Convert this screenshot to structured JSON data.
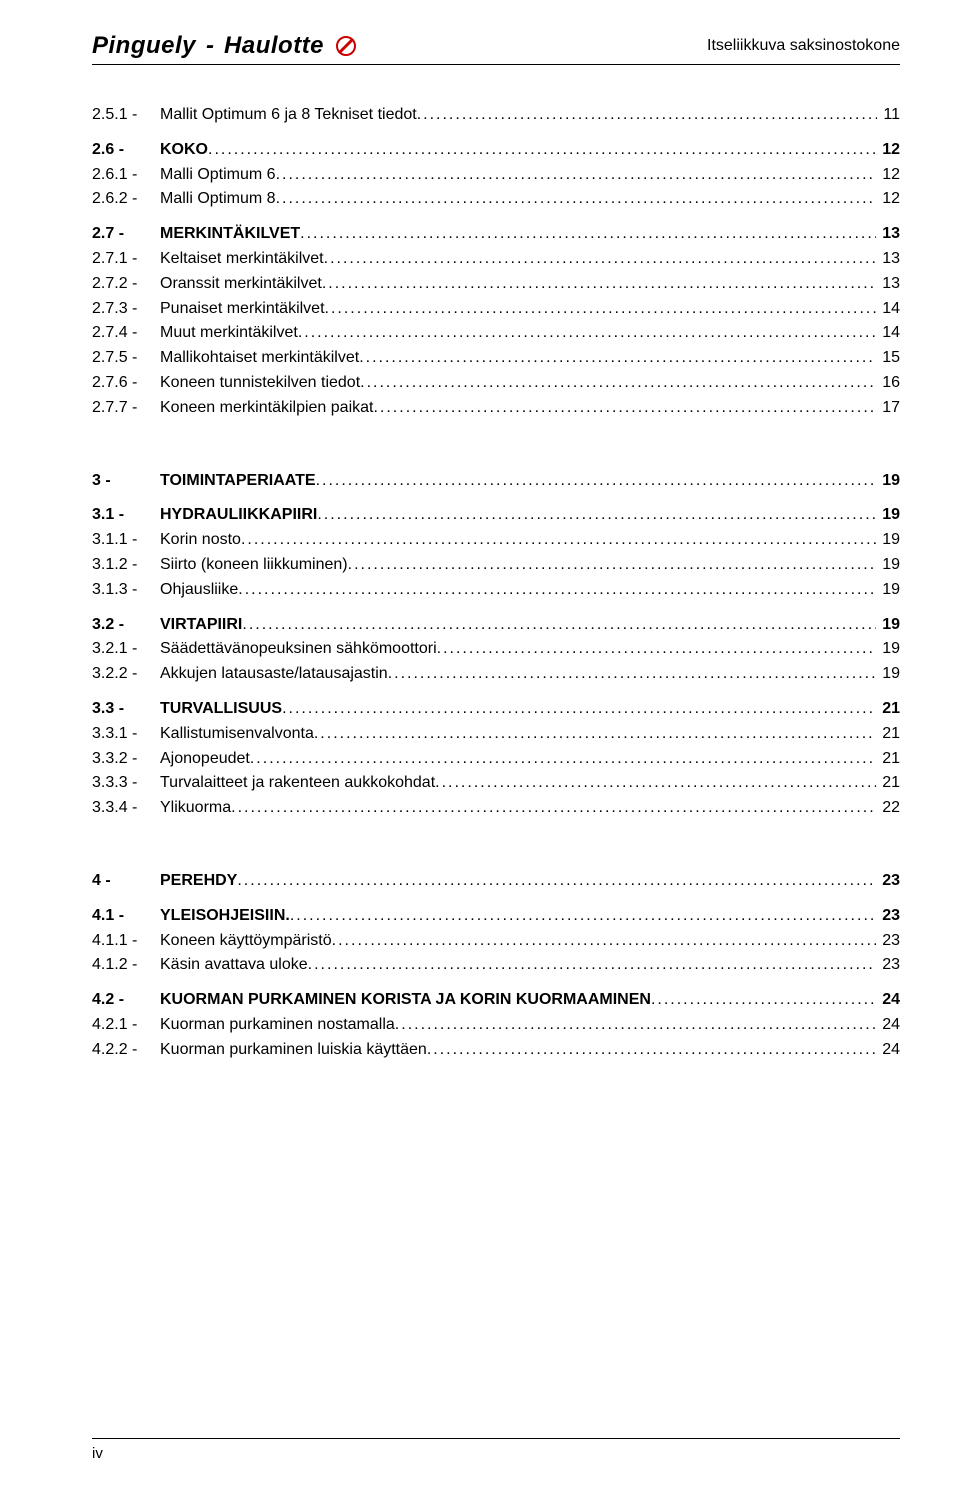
{
  "header": {
    "brand_left": "Pinguely",
    "brand_sep": "-",
    "brand_right": "Haulotte",
    "doc_title": "Itseliikkuva saksinostokone"
  },
  "footer": {
    "page_label": "iv"
  },
  "toc": [
    {
      "lvl": 2,
      "num": "2.5.1 -",
      "label": "Mallit Optimum 6 ja 8 Tekniset tiedot",
      "page": "11"
    },
    {
      "gap": "sec"
    },
    {
      "lvl": 1,
      "num": "2.6 -",
      "label": "KOKO",
      "page": "12"
    },
    {
      "lvl": 2,
      "num": "2.6.1 -",
      "label": "Malli Optimum 6",
      "page": "12"
    },
    {
      "lvl": 2,
      "num": "2.6.2 -",
      "label": "Malli Optimum 8",
      "page": "12"
    },
    {
      "gap": "sec"
    },
    {
      "lvl": 1,
      "num": "2.7 -",
      "label": "MERKINTÄKILVET",
      "page": "13"
    },
    {
      "lvl": 2,
      "num": "2.7.1 -",
      "label": "Keltaiset merkintäkilvet",
      "page": "13"
    },
    {
      "lvl": 2,
      "num": "2.7.2 -",
      "label": "Oranssit merkintäkilvet",
      "page": "13"
    },
    {
      "lvl": 2,
      "num": "2.7.3 -",
      "label": "Punaiset merkintäkilvet",
      "page": "14"
    },
    {
      "lvl": 2,
      "num": "2.7.4 -",
      "label": "Muut merkintäkilvet",
      "page": "14"
    },
    {
      "lvl": 2,
      "num": "2.7.5 -",
      "label": "Mallikohtaiset merkintäkilvet",
      "page": "15"
    },
    {
      "lvl": 2,
      "num": "2.7.6 -",
      "label": " Koneen tunnistekilven tiedot",
      "page": "16"
    },
    {
      "lvl": 2,
      "num": "2.7.7 -",
      "label": "Koneen merkintäkilpien paikat",
      "page": "17"
    },
    {
      "gap": "group"
    },
    {
      "lvl": 1,
      "num": "3 -",
      "label": "TOIMINTAPERIAATE",
      "page": "19"
    },
    {
      "gap": "sec"
    },
    {
      "lvl": 1,
      "num": "3.1 -",
      "label": "HYDRAULIIKKAPIIRI",
      "page": "19"
    },
    {
      "lvl": 2,
      "num": "3.1.1 -",
      "label": "Korin nosto",
      "page": "19"
    },
    {
      "lvl": 2,
      "num": "3.1.2 -",
      "label": "Siirto (koneen liikkuminen)",
      "page": "19"
    },
    {
      "lvl": 2,
      "num": "3.1.3 -",
      "label": "Ohjausliike",
      "page": "19"
    },
    {
      "gap": "sec"
    },
    {
      "lvl": 1,
      "num": "3.2 -",
      "label": "VIRTAPIIRI",
      "page": "19"
    },
    {
      "lvl": 2,
      "num": "3.2.1 -",
      "label": "Säädettävänopeuksinen sähkömoottori",
      "page": "19"
    },
    {
      "lvl": 2,
      "num": "3.2.2 -",
      "label": "Akkujen latausaste/latausajastin",
      "page": "19"
    },
    {
      "gap": "sec"
    },
    {
      "lvl": 1,
      "num": "3.3 -",
      "label": "TURVALLISUUS",
      "page": "21"
    },
    {
      "lvl": 2,
      "num": "3.3.1 -",
      "label": "Kallistumisenvalvonta",
      "page": "21"
    },
    {
      "lvl": 2,
      "num": "3.3.2 -",
      "label": "Ajonopeudet",
      "page": "21"
    },
    {
      "lvl": 2,
      "num": "3.3.3 -",
      "label": "Turvalaitteet ja rakenteen aukkokohdat",
      "page": "21"
    },
    {
      "lvl": 2,
      "num": "3.3.4 -",
      "label": "Ylikuorma",
      "page": "22"
    },
    {
      "gap": "group"
    },
    {
      "lvl": 1,
      "num": "4 -",
      "label": "PEREHDY",
      "page": "23"
    },
    {
      "gap": "sec"
    },
    {
      "lvl": 1,
      "num": "4.1 -",
      "label": "YLEISOHJEISIIN.",
      "page": "23"
    },
    {
      "lvl": 2,
      "num": "4.1.1 -",
      "label": "Koneen käyttöympäristö",
      "page": "23"
    },
    {
      "lvl": 2,
      "num": "4.1.2 -",
      "label": "Käsin avattava uloke",
      "page": "23"
    },
    {
      "gap": "sec"
    },
    {
      "lvl": 1,
      "num": "4.2 -",
      "label": "KUORMAN PURKAMINEN KORISTA JA KORIN KUORMAAMINEN",
      "page": "24"
    },
    {
      "lvl": 2,
      "num": "4.2.1 -",
      "label": "Kuorman purkaminen nostamalla",
      "page": "24"
    },
    {
      "lvl": 2,
      "num": "4.2.2 -",
      "label": "Kuorman purkaminen luiskia käyttäen",
      "page": "24"
    }
  ]
}
